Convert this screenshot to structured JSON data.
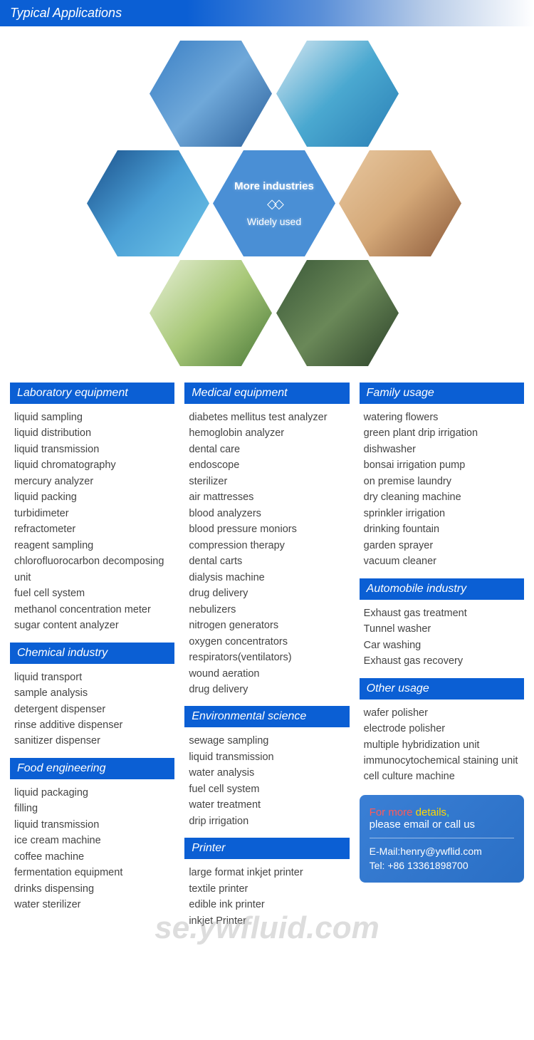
{
  "header": "Typical Applications",
  "center_hex": {
    "line1": "More industries",
    "line2": "Widely used"
  },
  "columns": [
    [
      {
        "title": "Laboratory equipment",
        "items": [
          "liquid sampling",
          "liquid distribution",
          "liquid transmission",
          "liquid chromatography",
          "mercury analyzer",
          "liquid packing",
          "turbidimeter",
          "refractometer",
          "reagent sampling",
          "chlorofluorocarbon decomposing unit",
          "fuel cell system",
          "methanol concentration meter",
          "sugar content analyzer"
        ]
      },
      {
        "title": "Chemical industry",
        "items": [
          "liquid transport",
          "sample analysis",
          "detergent dispenser",
          "rinse additive dispenser",
          "sanitizer dispenser"
        ]
      },
      {
        "title": "Food engineering",
        "items": [
          "liquid packaging",
          "filling",
          "liquid transmission",
          "ice cream machine",
          "coffee machine",
          "fermentation equipment",
          "drinks dispensing",
          "water sterilizer"
        ]
      }
    ],
    [
      {
        "title": "Medical equipment",
        "items": [
          "diabetes mellitus test analyzer",
          "hemoglobin analyzer",
          "dental care",
          "endoscope",
          "sterilizer",
          "air mattresses",
          "blood analyzers",
          "blood pressure moniors",
          "compression therapy",
          "dental carts",
          "dialysis machine",
          "drug delivery",
          "nebulizers",
          "nitrogen generators",
          "oxygen concentrators",
          "respirators(ventilators)",
          "wound aeration",
          "drug delivery"
        ]
      },
      {
        "title": "Environmental science",
        "items": [
          "sewage sampling",
          "liquid transmission",
          "water analysis",
          "fuel cell system",
          "water treatment",
          "drip irrigation"
        ]
      },
      {
        "title": "Printer",
        "items": [
          "large format inkjet printer",
          "textile printer",
          "edible ink printer",
          "inkjet Printer"
        ]
      }
    ],
    [
      {
        "title": "Family usage",
        "items": [
          "watering flowers",
          "green plant drip irrigation",
          "dishwasher",
          "bonsai irrigation pump",
          "on premise laundry",
          "dry cleaning machine",
          "sprinkler irrigation",
          "drinking fountain",
          "garden sprayer",
          "vacuum cleaner"
        ]
      },
      {
        "title": "Automobile industry",
        "items": [
          "Exhaust gas treatment",
          "Tunnel washer",
          "Car washing",
          "Exhaust gas recovery"
        ]
      },
      {
        "title": "Other usage",
        "items": [
          "wafer polisher",
          "electrode polisher",
          "multiple hybridization unit",
          "immunocytochemical staining unit",
          "cell culture machine"
        ]
      }
    ]
  ],
  "contact": {
    "line1a": "For more ",
    "line1b": "details",
    "line1c": ",",
    "line2": "please email or call us",
    "email_label": "E-Mail:",
    "email": "henry@ywflid.com",
    "tel_label": "Tel: ",
    "tel": "+86 13361898700"
  },
  "watermark": "se.ywfluid.com",
  "style": {
    "brand_blue": "#0b5fd4",
    "text_color": "#444",
    "item_fontsize": 14.5,
    "header_fontsize": 18,
    "sect_header_fontsize": 16
  }
}
